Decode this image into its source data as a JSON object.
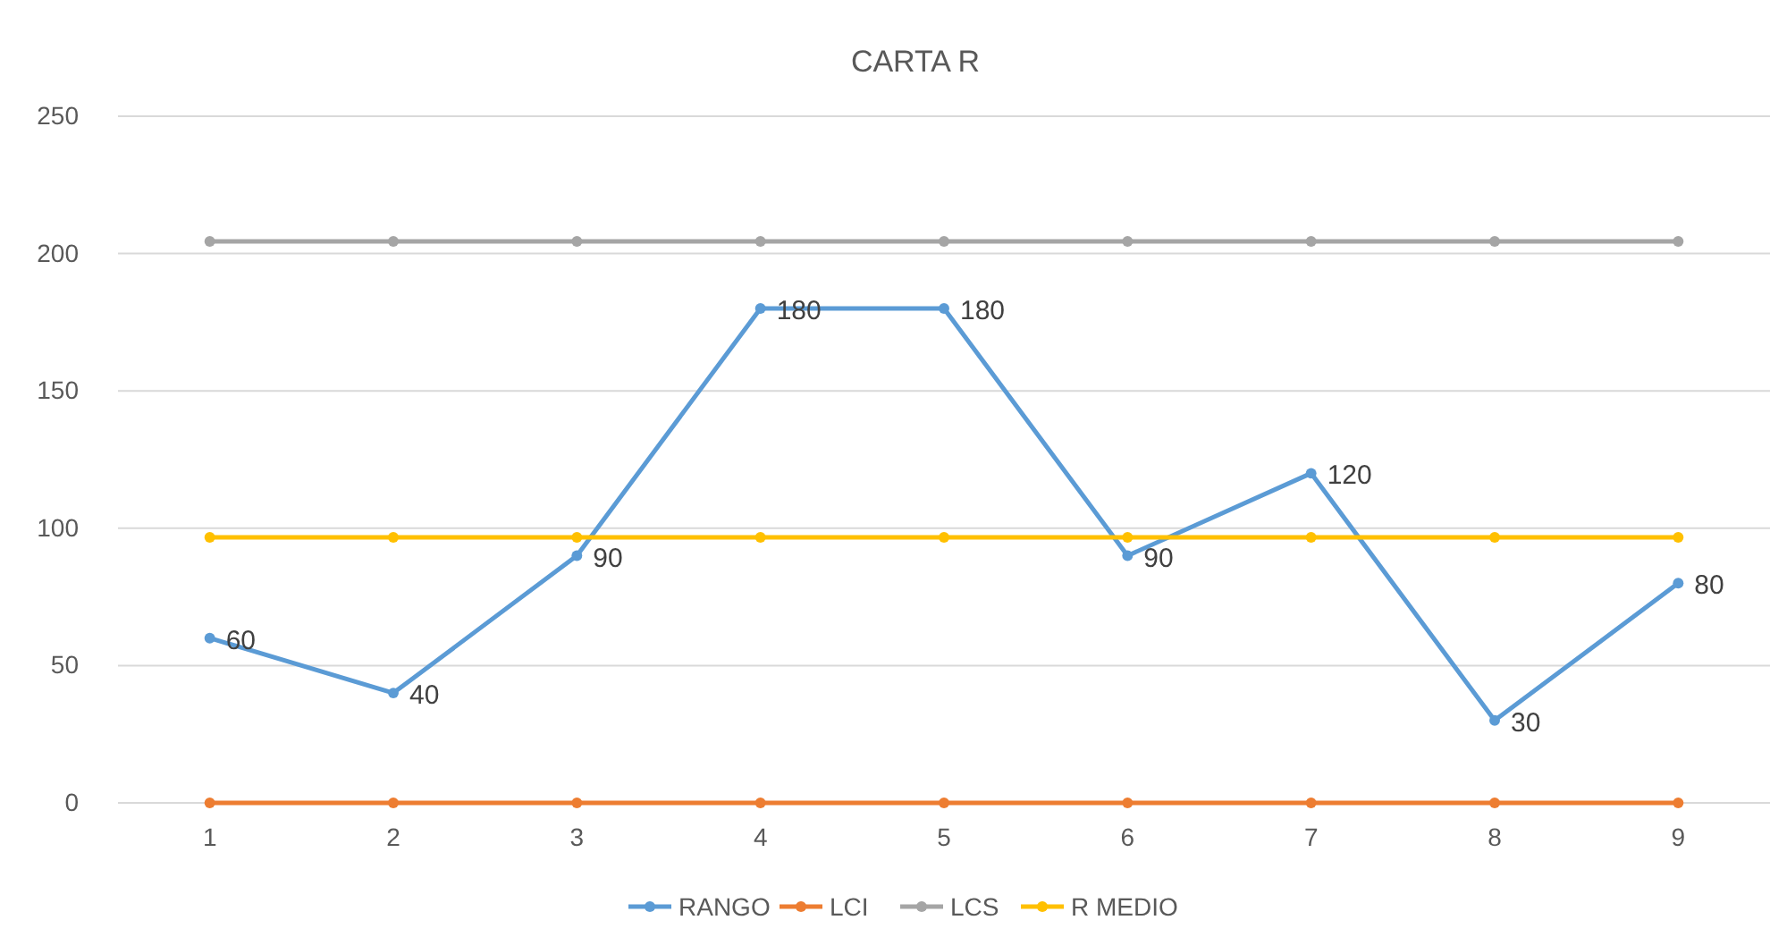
{
  "chart_data": {
    "type": "line",
    "title": "CARTA R",
    "categories": [
      "1",
      "2",
      "3",
      "4",
      "5",
      "6",
      "7",
      "8",
      "9"
    ],
    "series": [
      {
        "name": "RANGO",
        "color": "#5b9bd5",
        "values": [
          60,
          40,
          90,
          180,
          180,
          90,
          120,
          30,
          80
        ],
        "value_labels": [
          "60",
          "40",
          "90",
          "180",
          "180",
          "90",
          "120",
          "30",
          "80"
        ]
      },
      {
        "name": "LCI",
        "color": "#ed7d31",
        "values": [
          0,
          0,
          0,
          0,
          0,
          0,
          0,
          0,
          0
        ]
      },
      {
        "name": "LCS",
        "color": "#a5a5a5",
        "values": [
          204.4,
          204.4,
          204.4,
          204.4,
          204.4,
          204.4,
          204.4,
          204.4,
          204.4
        ]
      },
      {
        "name": "R MEDIO",
        "color": "#ffc000",
        "values": [
          96.7,
          96.7,
          96.7,
          96.7,
          96.7,
          96.7,
          96.7,
          96.7,
          96.7
        ]
      }
    ],
    "ylim": [
      0,
      250
    ],
    "yticks": [
      0,
      50,
      100,
      150,
      200,
      250
    ],
    "grid": "y",
    "legend": "bottom",
    "marker": "circle",
    "line_style": "solid"
  }
}
